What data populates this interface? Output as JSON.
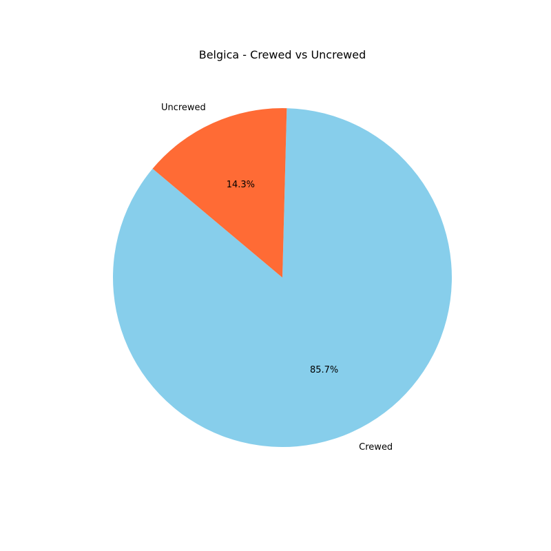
{
  "chart_data": {
    "type": "pie",
    "title": "Belgica - Crewed vs Uncrewed",
    "labels": [
      "Crewed",
      "Uncrewed"
    ],
    "values": [
      85.7,
      14.3
    ],
    "percent_labels": [
      "85.7%",
      "14.3%"
    ],
    "colors": [
      "#87CEEB",
      "#FF6B35"
    ],
    "start_angle_deg": 140,
    "direction": "counterclockwise",
    "legend": "none"
  }
}
